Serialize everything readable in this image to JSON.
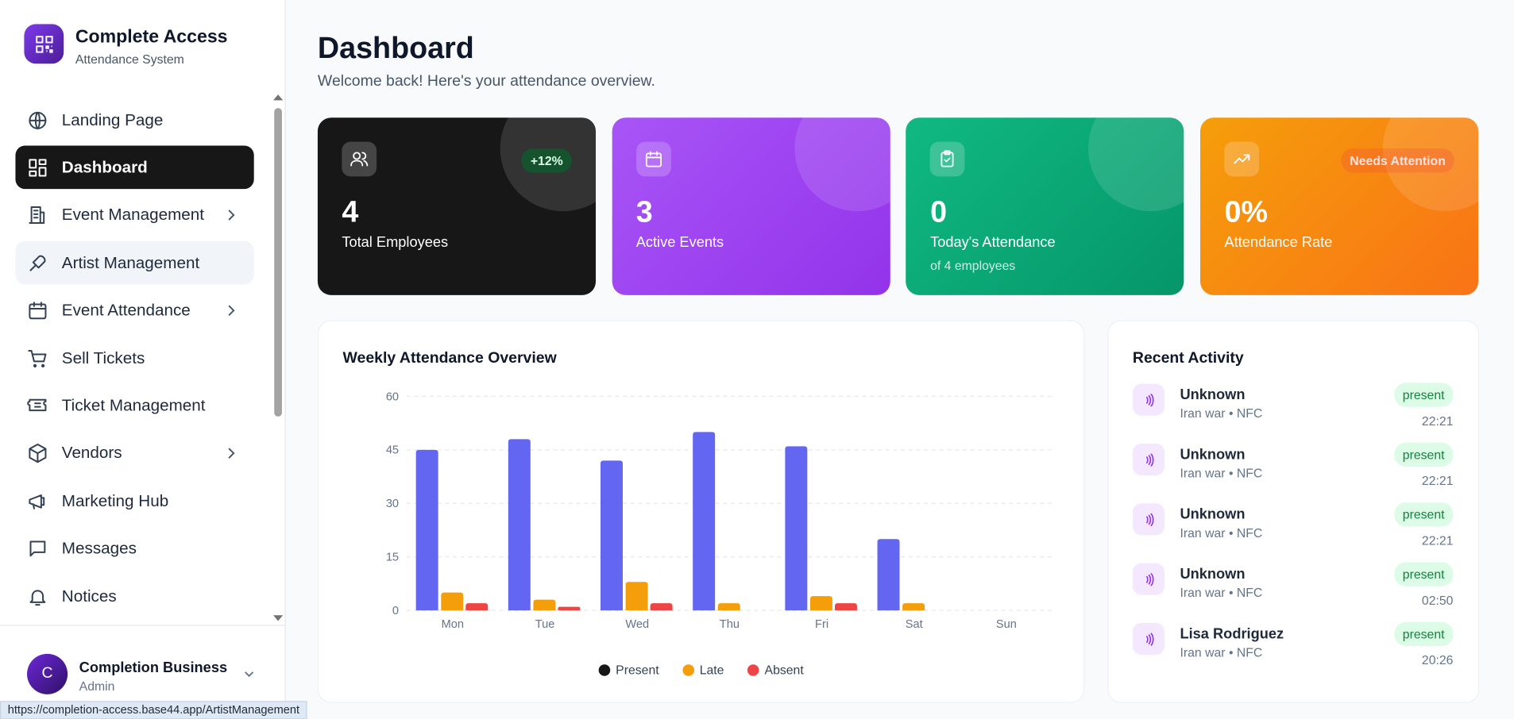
{
  "sidebar": {
    "brand": {
      "title": "Complete Access",
      "subtitle": "Attendance System"
    },
    "nav": [
      {
        "label": "Landing Page"
      },
      {
        "label": "Dashboard",
        "active": true
      },
      {
        "label": "Event Management",
        "has_submenu": true
      },
      {
        "label": "Artist Management",
        "hovered": true
      },
      {
        "label": "Event Attendance",
        "has_submenu": true
      },
      {
        "label": "Sell Tickets"
      },
      {
        "label": "Ticket Management"
      },
      {
        "label": "Vendors",
        "has_submenu": true
      },
      {
        "label": "Marketing Hub"
      },
      {
        "label": "Messages"
      },
      {
        "label": "Notices"
      }
    ],
    "user": {
      "initial": "C",
      "name": "Completion Business",
      "role": "Admin"
    }
  },
  "header": {
    "title": "Dashboard",
    "subtitle": "Welcome back! Here's your attendance overview."
  },
  "cards": [
    {
      "value": "4",
      "label": "Total Employees",
      "badge": "+12%"
    },
    {
      "value": "3",
      "label": "Active Events"
    },
    {
      "value": "0",
      "label": "Today's Attendance",
      "sub": "of 4 employees"
    },
    {
      "value": "0%",
      "label": "Attendance Rate",
      "badge": "Needs Attention"
    }
  ],
  "chart_data": {
    "type": "bar",
    "title": "Weekly Attendance Overview",
    "categories": [
      "Mon",
      "Tue",
      "Wed",
      "Thu",
      "Fri",
      "Sat",
      "Sun"
    ],
    "series": [
      {
        "name": "Present",
        "color": "#6366f1",
        "legend_color": "#171717",
        "values": [
          45,
          48,
          42,
          50,
          46,
          20,
          0
        ]
      },
      {
        "name": "Late",
        "color": "#f59e0b",
        "values": [
          5,
          3,
          8,
          2,
          4,
          2,
          0
        ]
      },
      {
        "name": "Absent",
        "color": "#ef4444",
        "values": [
          2,
          1,
          2,
          0,
          2,
          0,
          0
        ]
      }
    ],
    "ylim": [
      0,
      60
    ],
    "yticks": [
      0,
      15,
      30,
      45,
      60
    ],
    "grid": true
  },
  "activity": {
    "title": "Recent Activity",
    "items": [
      {
        "name": "Unknown",
        "detail": "Iran war • NFC",
        "status": "present",
        "time": "22:21"
      },
      {
        "name": "Unknown",
        "detail": "Iran war • NFC",
        "status": "present",
        "time": "22:21"
      },
      {
        "name": "Unknown",
        "detail": "Iran war • NFC",
        "status": "present",
        "time": "22:21"
      },
      {
        "name": "Unknown",
        "detail": "Iran war • NFC",
        "status": "present",
        "time": "02:50"
      },
      {
        "name": "Lisa Rodriguez",
        "detail": "Iran war • NFC",
        "status": "present",
        "time": "20:26"
      }
    ]
  },
  "status_bar": {
    "url": "https://completion-access.base44.app/ArtistManagement"
  }
}
